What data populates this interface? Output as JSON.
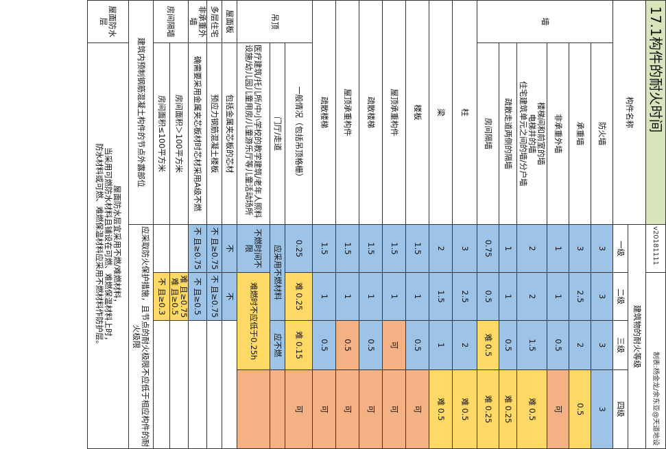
{
  "title": "17.1构件的耐火时间",
  "version": "v20181111",
  "credit": "制表:杨金龙/余东亚@天道地设",
  "header": {
    "component": "构件名称",
    "level_group": "建筑物的耐火等级",
    "levels": [
      "一级",
      "二级",
      "三级",
      "四级"
    ]
  },
  "groups": {
    "wall": "墙",
    "ceiling": "吊顶",
    "non_load": "非承重外墙",
    "room_partition": "房间隔墙"
  },
  "rows": {
    "firewall": {
      "name": "防火墙",
      "v": [
        "3",
        "3",
        "3",
        "3"
      ]
    },
    "loadwall": {
      "name": "承重墙",
      "v": [
        "3",
        "2.5",
        "2",
        "0.5"
      ]
    },
    "nonloadwall": {
      "name": "非承重外墙",
      "v": [
        "1",
        "1",
        "0.5",
        "可"
      ]
    },
    "stairwall": {
      "name": "楼梯间和前室的墙\n电梯井的墙\n住宅建筑单元之间的墙/分户墙",
      "v": [
        "2",
        "2",
        "1.5",
        "0.5"
      ],
      "v4": "难"
    },
    "corridorwall": {
      "name": "疏散走道两侧的隔墙",
      "v": [
        "1",
        "1",
        "0.5",
        "0.25"
      ],
      "v4": "难"
    },
    "roomwall": {
      "name": "房间隔墙",
      "v": [
        "0.75",
        "0.5",
        "0.5",
        "0.25"
      ],
      "v3": "难",
      "v4": "难"
    },
    "column": {
      "name": "柱",
      "v": [
        "3",
        "2.5",
        "2",
        "0.5"
      ],
      "v4": "难"
    },
    "beam": {
      "name": "梁",
      "v": [
        "2",
        "1.5",
        "1",
        "0.5"
      ],
      "v4": "难"
    },
    "floor": {
      "name": "楼板",
      "v": [
        "1.5",
        "1",
        "0.5",
        "可"
      ]
    },
    "roof": {
      "name": "屋顶承重构件",
      "v": [
        "1.5",
        "1",
        "0.5",
        "可"
      ],
      "v3": "可"
    },
    "stair": {
      "name": "疏散楼梯",
      "v": [
        "1.5",
        "1",
        "0.5",
        "可"
      ]
    },
    "roof2": {
      "name": "屋顶承重构件",
      "v": [
        "1.5",
        "1",
        "0.5",
        "可"
      ]
    },
    "stair2": {
      "name": "疏散楼梯",
      "v": [
        "1.5",
        "1",
        "0.5",
        "可"
      ]
    },
    "ceiling_general": {
      "name": "一般情况（包括吊顶格栅）",
      "v": [
        "0.25",
        "0.25",
        "0.15",
        "可"
      ],
      "v2": "难",
      "v3": "难"
    }
  },
  "ceiling_detail": {
    "general": "一般情况",
    "door_hall": "门厅/走道",
    "special": "医疗建筑/托儿所/中小学校的教学建筑/老年人照料设施/幼儿园儿童用房/儿童游乐厅等儿童活动场所",
    "note_noncomb": "应采用不燃材料。",
    "note_hard": "难燃时不应低于0.25h",
    "note_time": "不燃时间不限",
    "note_must": "应采用不燃材料",
    "note_nofuel": "应不燃"
  },
  "roofboard": {
    "name": "屋面板",
    "detail": "包括金属夹芯板的芯材",
    "v1": "不",
    "v2": "不"
  },
  "multistory": {
    "name": "多层住宅",
    "detail": "预应力钢筋混凝土楼板",
    "v1": "不 且≥0.75",
    "v2": "不 且≥0.75"
  },
  "nonload_ext": {
    "name": "非承重外墙",
    "detail": "确需要采用金属夹芯板材时芯材采用A级不燃",
    "v1": "不 且≥0.75",
    "v2": "不 且≥0.5"
  },
  "partition": {
    "name": "房间隔墙",
    "large": "房间面积＞100平方米",
    "small": "房间面积≤100平方米",
    "v_large_hard": "难 且≥0.75",
    "v_large": "难 且≥0.5",
    "v_small": "不 且≥0.3"
  },
  "prefab": {
    "name": "建筑内预制钢筋混凝土构件的节点外露部位",
    "text": "应采取防火保护措施，且节点的耐火极限不应低于相应构件的耐火极限"
  },
  "roofproof": {
    "name": "屋面防水层",
    "text1": "屋面防水层宜采用不燃/难燃材料，",
    "text2": "当采用可燃防水材料且铺设在可燃、难燃保温材料上时，",
    "text3": "防水材料或可燃、难燃保温材料应采用不燃材料作防护层。"
  }
}
